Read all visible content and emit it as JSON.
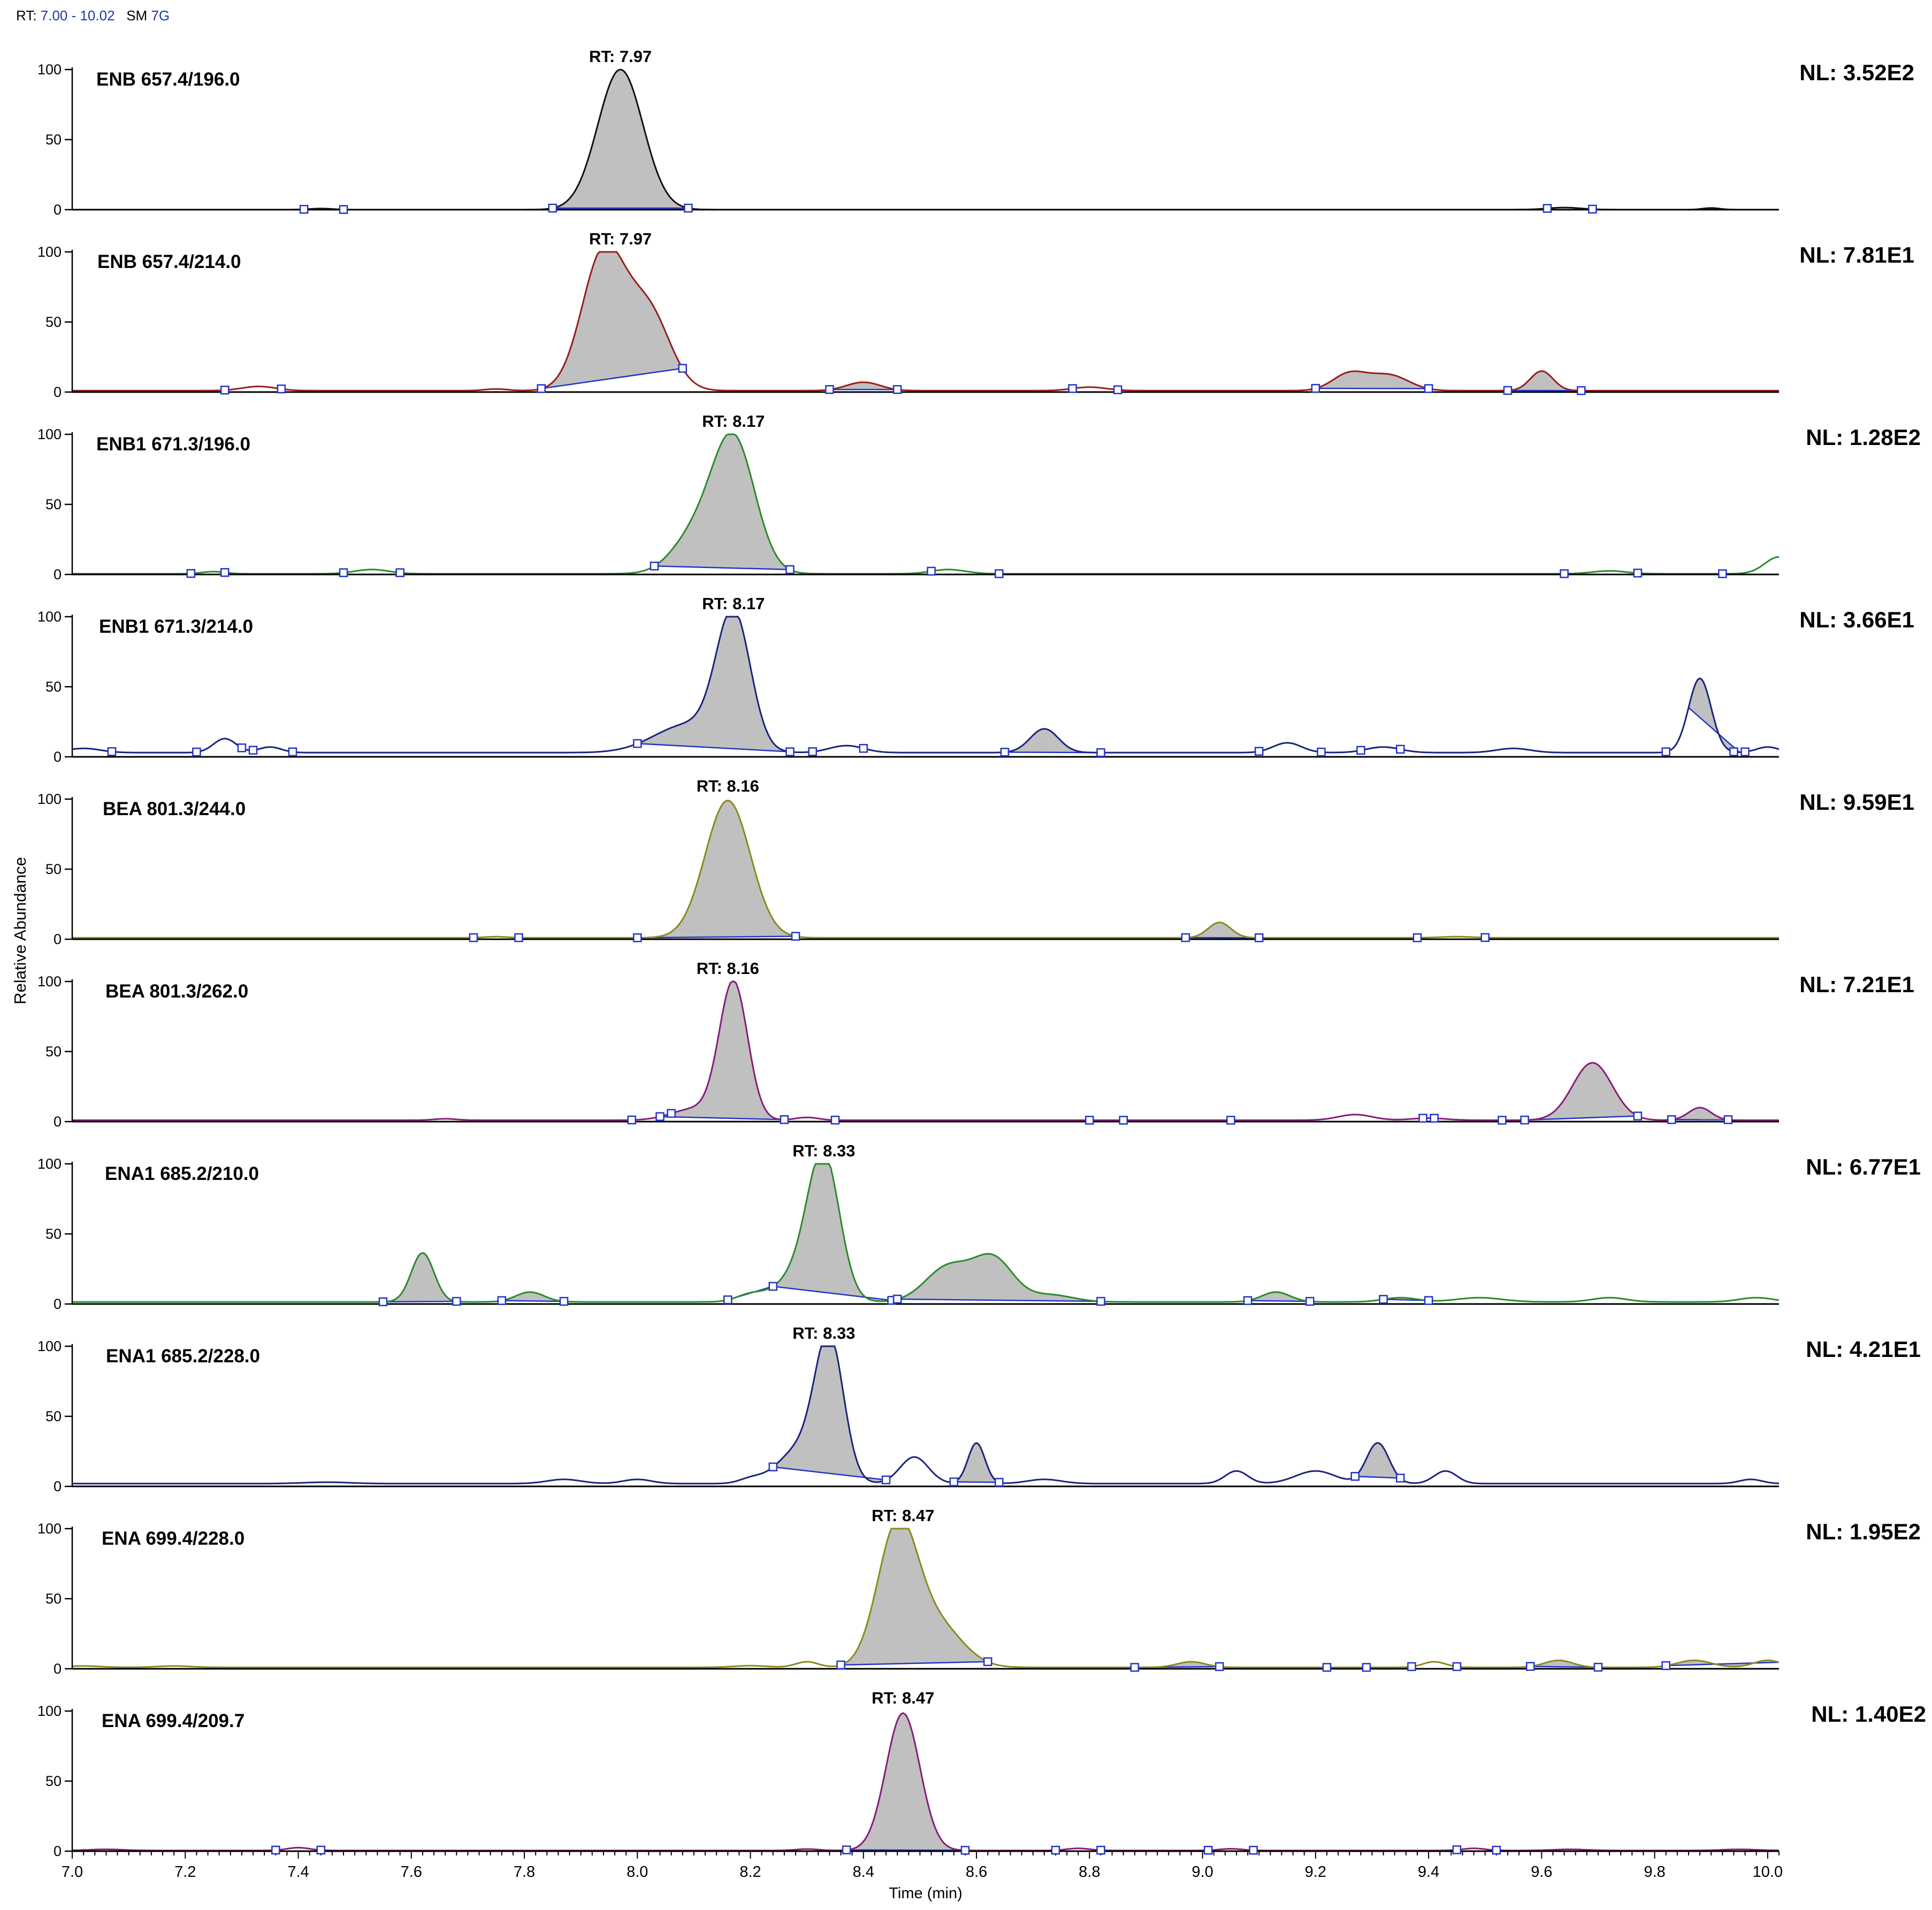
{
  "header": {
    "rt_label": "RT:",
    "rt_range": "7.00 - 10.02",
    "sm_label": "SM",
    "sm_value": "7G"
  },
  "chart_data": {
    "type": "line",
    "title": "",
    "xlabel": "Time (min)",
    "ylabel": "Relative Abundance",
    "xlim": [
      7.0,
      10.02
    ],
    "ylim": [
      0,
      100
    ],
    "x_ticks": [
      "7.0",
      "7.2",
      "7.4",
      "7.6",
      "7.8",
      "8.0",
      "8.2",
      "8.4",
      "8.6",
      "8.8",
      "9.0",
      "9.2",
      "9.4",
      "9.6",
      "9.8",
      "10.0"
    ],
    "y_ticks": [
      "0",
      "50",
      "100"
    ],
    "fill_color": "#c0c0c0",
    "marker_color": "#2233cc",
    "series": [
      {
        "name": "ENB 657.4/196.0",
        "nl": "NL: 3.52E2",
        "rt_label": "RT: 7.97",
        "rt": 7.97,
        "color": "#111111",
        "baseline": 0,
        "peaks": [
          [
            7.97,
            100,
            0.04
          ],
          [
            9.64,
            1.5,
            0.03
          ],
          [
            9.9,
            1.2,
            0.015
          ],
          [
            7.44,
            0.8,
            0.02
          ]
        ],
        "filled": [
          [
            7.85,
            8.09
          ]
        ],
        "markers": [
          7.41,
          7.48,
          7.85,
          8.09,
          9.61,
          9.69
        ]
      },
      {
        "name": "ENB 657.4/214.0",
        "nl": "NL: 7.81E1",
        "rt_label": "RT: 7.97",
        "rt": 7.97,
        "color": "#9a1c1c",
        "baseline": 1,
        "peaks": [
          [
            7.94,
            98,
            0.038
          ],
          [
            8.02,
            55,
            0.038
          ],
          [
            7.33,
            3,
            0.03
          ],
          [
            8.4,
            6,
            0.03
          ],
          [
            8.8,
            2.5,
            0.03
          ],
          [
            9.26,
            12,
            0.03
          ],
          [
            9.33,
            11,
            0.035
          ],
          [
            9.6,
            14,
            0.02
          ],
          [
            7.75,
            1.2,
            0.02
          ]
        ],
        "filled": [
          [
            7.83,
            8.08
          ],
          [
            8.34,
            8.46
          ],
          [
            9.2,
            9.4
          ],
          [
            9.54,
            9.67
          ]
        ],
        "markers": [
          7.27,
          7.37,
          7.83,
          8.08,
          8.34,
          8.46,
          8.77,
          8.85,
          9.2,
          9.4,
          9.54,
          9.67
        ]
      },
      {
        "name": "ENB1 671.3/196.0",
        "nl": "NL: 1.28E2",
        "rt_label": "RT: 8.17",
        "rt": 8.17,
        "color": "#2a8a2a",
        "baseline": 0.5,
        "peaks": [
          [
            8.17,
            95,
            0.038
          ],
          [
            8.1,
            25,
            0.04
          ],
          [
            7.53,
            3,
            0.03
          ],
          [
            8.55,
            3,
            0.03
          ],
          [
            9.72,
            2,
            0.03
          ],
          [
            10.02,
            12,
            0.025
          ],
          [
            7.25,
            1.5,
            0.02
          ]
        ],
        "filled": [
          [
            8.03,
            8.27
          ]
        ],
        "markers": [
          7.21,
          7.27,
          7.48,
          7.58,
          8.03,
          8.27,
          8.52,
          8.64,
          9.64,
          9.77,
          9.92
        ]
      },
      {
        "name": "ENB1 671.3/214.0",
        "nl": "NL: 3.66E1",
        "rt_label": "RT: 8.17",
        "rt": 8.17,
        "color": "#1a237e",
        "baseline": 3,
        "peaks": [
          [
            8.17,
            95,
            0.03
          ],
          [
            8.09,
            20,
            0.06
          ],
          [
            7.27,
            10,
            0.02
          ],
          [
            7.35,
            4,
            0.02
          ],
          [
            8.37,
            5,
            0.03
          ],
          [
            8.72,
            17,
            0.025
          ],
          [
            9.15,
            7,
            0.025
          ],
          [
            9.32,
            4,
            0.03
          ],
          [
            9.55,
            3,
            0.03
          ],
          [
            9.88,
            53,
            0.02
          ],
          [
            10.0,
            4,
            0.02
          ],
          [
            7.02,
            3,
            0.03
          ]
        ],
        "filled": [
          [
            8.0,
            8.27
          ],
          [
            8.65,
            8.82
          ],
          [
            9.86,
            9.95
          ]
        ],
        "markers": [
          7.07,
          7.22,
          7.3,
          7.32,
          7.39,
          8.0,
          8.27,
          8.31,
          8.4,
          8.65,
          8.82,
          9.1,
          9.21,
          9.28,
          9.35,
          9.82,
          9.94,
          9.96
        ]
      },
      {
        "name": "BEA 801.3/244.0",
        "nl": "NL: 9.59E1",
        "rt_label": "RT: 8.16",
        "rt": 8.16,
        "color": "#8a8a1a",
        "baseline": 1,
        "peaks": [
          [
            8.16,
            98,
            0.04
          ],
          [
            9.03,
            11,
            0.02
          ],
          [
            7.75,
            0.8,
            0.02
          ],
          [
            9.45,
            0.8,
            0.03
          ]
        ],
        "filled": [
          [
            8.0,
            8.28
          ],
          [
            8.97,
            9.1
          ]
        ],
        "markers": [
          7.71,
          7.79,
          8.0,
          8.28,
          8.97,
          9.1,
          9.38,
          9.5
        ]
      },
      {
        "name": "BEA 801.3/262.0",
        "nl": "NL: 7.21E1",
        "rt_label": "RT: 8.16",
        "rt": 8.16,
        "color": "#8a1a7a",
        "baseline": 1,
        "peaks": [
          [
            8.17,
            98,
            0.025
          ],
          [
            8.1,
            8,
            0.04
          ],
          [
            9.69,
            41,
            0.035
          ],
          [
            9.88,
            9,
            0.02
          ],
          [
            9.27,
            4,
            0.03
          ],
          [
            7.66,
            1,
            0.02
          ],
          [
            8.3,
            2,
            0.02
          ],
          [
            9.4,
            1.5,
            0.03
          ]
        ],
        "filled": [
          [
            8.04,
            8.26
          ],
          [
            9.57,
            9.77
          ],
          [
            9.83,
            9.93
          ]
        ],
        "markers": [
          7.99,
          8.04,
          8.06,
          8.26,
          8.35,
          8.8,
          8.86,
          9.05,
          9.39,
          9.41,
          9.53,
          9.57,
          9.77,
          9.83,
          9.93
        ]
      },
      {
        "name": "ENA1 685.2/210.0",
        "nl": "NL: 6.77E1",
        "rt_label": "RT: 8.33",
        "rt": 8.33,
        "color": "#2a8a2a",
        "baseline": 1.5,
        "peaks": [
          [
            8.33,
            96,
            0.028
          ],
          [
            8.29,
            20,
            0.04
          ],
          [
            8.55,
            25,
            0.04
          ],
          [
            8.63,
            30,
            0.035
          ],
          [
            8.73,
            5,
            0.04
          ],
          [
            7.62,
            35,
            0.02
          ],
          [
            7.81,
            7,
            0.025
          ],
          [
            8.2,
            5,
            0.025
          ],
          [
            9.13,
            7,
            0.025
          ],
          [
            9.35,
            3,
            0.03
          ],
          [
            9.49,
            3,
            0.04
          ],
          [
            9.72,
            3,
            0.03
          ],
          [
            9.98,
            3,
            0.03
          ]
        ],
        "filled": [
          [
            7.55,
            7.68
          ],
          [
            7.76,
            7.87
          ],
          [
            8.16,
            8.24
          ],
          [
            8.24,
            8.45
          ],
          [
            8.46,
            8.82
          ],
          [
            9.08,
            9.19
          ],
          [
            9.32,
            9.4
          ]
        ],
        "markers": [
          7.55,
          7.68,
          7.76,
          7.87,
          8.16,
          8.24,
          8.45,
          8.46,
          8.82,
          9.08,
          9.19,
          9.32,
          9.4
        ]
      },
      {
        "name": "ENA1 685.2/228.0",
        "nl": "NL: 4.21E1",
        "rt_label": "RT: 8.33",
        "rt": 8.33,
        "color": "#1a237e",
        "baseline": 2,
        "peaks": [
          [
            8.34,
            97,
            0.025
          ],
          [
            8.29,
            25,
            0.04
          ],
          [
            8.49,
            19,
            0.025
          ],
          [
            8.6,
            29,
            0.015
          ],
          [
            9.31,
            29,
            0.02
          ],
          [
            7.87,
            3,
            0.03
          ],
          [
            8.0,
            3,
            0.025
          ],
          [
            8.2,
            3,
            0.02
          ],
          [
            8.72,
            3,
            0.03
          ],
          [
            9.06,
            9,
            0.02
          ],
          [
            9.2,
            9,
            0.035
          ],
          [
            9.43,
            9,
            0.02
          ],
          [
            9.97,
            3,
            0.02
          ],
          [
            7.45,
            1,
            0.04
          ]
        ],
        "filled": [
          [
            8.24,
            8.44
          ],
          [
            8.56,
            8.64
          ],
          [
            9.27,
            9.35
          ]
        ],
        "markers": [
          8.24,
          8.44,
          8.56,
          8.64,
          9.27,
          9.35
        ]
      },
      {
        "name": "ENA 699.4/228.0",
        "nl": "NL: 1.95E2",
        "rt_label": "RT: 8.47",
        "rt": 8.47,
        "color": "#8a8a1a",
        "baseline": 1,
        "peaks": [
          [
            8.46,
            98,
            0.035
          ],
          [
            8.53,
            30,
            0.045
          ],
          [
            8.3,
            4,
            0.02
          ],
          [
            8.98,
            4,
            0.025
          ],
          [
            9.41,
            4,
            0.02
          ],
          [
            9.63,
            5,
            0.025
          ],
          [
            9.87,
            5,
            0.03
          ],
          [
            10.0,
            5,
            0.025
          ],
          [
            7.02,
            1,
            0.03
          ],
          [
            7.18,
            1,
            0.03
          ],
          [
            8.2,
            1.2,
            0.03
          ]
        ],
        "filled": [
          [
            8.36,
            8.62
          ],
          [
            8.88,
            9.03
          ],
          [
            9.58,
            9.7
          ],
          [
            9.82,
            10.02
          ]
        ],
        "markers": [
          8.36,
          8.62,
          8.88,
          9.03,
          9.22,
          9.29,
          9.37,
          9.45,
          9.58,
          9.7,
          9.82
        ]
      },
      {
        "name": "ENA 699.4/209.7",
        "nl": "NL: 1.40E2",
        "rt_label": "RT: 8.47",
        "rt": 8.47,
        "color": "#8a1a7a",
        "baseline": 0.5,
        "peaks": [
          [
            8.47,
            98,
            0.03
          ],
          [
            7.4,
            2,
            0.02
          ],
          [
            8.78,
            1.5,
            0.02
          ],
          [
            9.05,
            1.2,
            0.02
          ],
          [
            9.48,
            1.5,
            0.02
          ],
          [
            7.06,
            0.8,
            0.03
          ],
          [
            8.3,
            1,
            0.02
          ],
          [
            9.65,
            0.8,
            0.03
          ],
          [
            9.95,
            0.8,
            0.03
          ]
        ],
        "filled": [
          [
            8.37,
            8.58
          ]
        ],
        "markers": [
          7.36,
          7.44,
          8.37,
          8.58,
          8.74,
          8.82,
          9.01,
          9.09,
          9.45,
          9.52
        ]
      }
    ]
  }
}
